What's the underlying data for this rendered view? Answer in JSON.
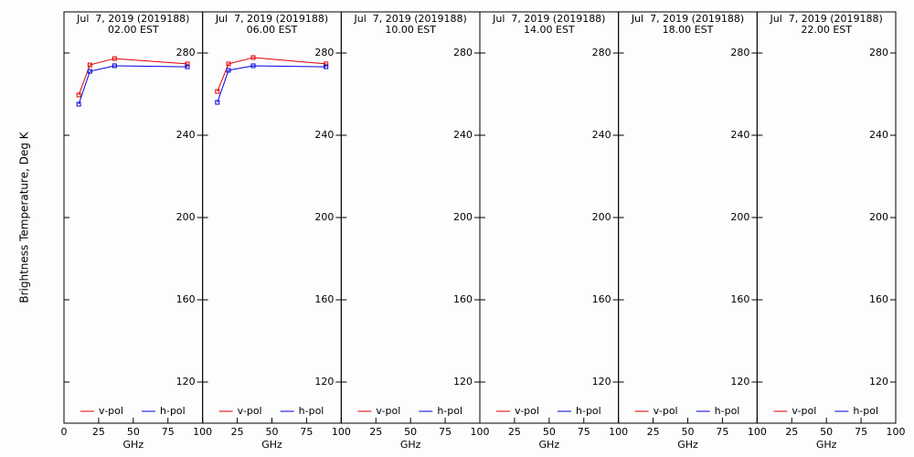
{
  "chart_data": [
    {
      "type": "line",
      "title": "Jul  7, 2019 (2019188)",
      "subtitle": "02.00 EST",
      "xlabel": "GHz",
      "ylabel": "Brightness Temperature, Deg K",
      "x": [
        10.65,
        18.7,
        36.5,
        89
      ],
      "series": [
        {
          "name": "v-pol",
          "color": "#e00000",
          "values": [
            259.6,
            274.2,
            277.3,
            274.7
          ]
        },
        {
          "name": "h-pol",
          "color": "#0000e0",
          "values": [
            255.1,
            271.1,
            273.8,
            273.3
          ]
        }
      ],
      "xlim": [
        0,
        100
      ],
      "ylim": [
        100,
        300
      ],
      "xticks": [
        0,
        25,
        50,
        75,
        100
      ],
      "yticks": [
        120,
        160,
        200,
        240,
        280
      ]
    },
    {
      "type": "line",
      "title": "Jul  7, 2019 (2019188)",
      "subtitle": "06.00 EST",
      "xlabel": "GHz",
      "x": [
        10.65,
        18.7,
        36.5,
        89
      ],
      "series": [
        {
          "name": "v-pol",
          "color": "#e00000",
          "values": [
            261.3,
            274.7,
            277.8,
            274.7
          ]
        },
        {
          "name": "h-pol",
          "color": "#0000e0",
          "values": [
            256,
            271.6,
            273.8,
            273.3
          ]
        }
      ],
      "xlim": [
        0,
        100
      ],
      "ylim": [
        100,
        300
      ],
      "xticks": [
        25,
        50,
        75,
        100
      ],
      "yticks": [
        120,
        160,
        200,
        240,
        280
      ]
    },
    {
      "type": "line",
      "title": "Jul  7, 2019 (2019188)",
      "subtitle": "10.00 EST",
      "xlabel": "GHz",
      "x": [
        10.65,
        18.7,
        36.5,
        89
      ],
      "series": [
        {
          "name": "v-pol",
          "color": "#e00000",
          "values": [
            null,
            null,
            null,
            null
          ]
        },
        {
          "name": "h-pol",
          "color": "#0000e0",
          "values": [
            null,
            null,
            null,
            null
          ]
        }
      ],
      "xlim": [
        0,
        100
      ],
      "ylim": [
        100,
        300
      ],
      "xticks": [
        25,
        50,
        75,
        100
      ],
      "yticks": [
        120,
        160,
        200,
        240,
        280
      ]
    },
    {
      "type": "line",
      "title": "Jul  7, 2019 (2019188)",
      "subtitle": "14.00 EST",
      "xlabel": "GHz",
      "x": [
        10.65,
        18.7,
        36.5,
        89
      ],
      "series": [
        {
          "name": "v-pol",
          "color": "#e00000",
          "values": [
            null,
            null,
            null,
            null
          ]
        },
        {
          "name": "h-pol",
          "color": "#0000e0",
          "values": [
            null,
            null,
            null,
            null
          ]
        }
      ],
      "xlim": [
        0,
        100
      ],
      "ylim": [
        100,
        300
      ],
      "xticks": [
        25,
        50,
        75,
        100
      ],
      "yticks": [
        120,
        160,
        200,
        240,
        280
      ]
    },
    {
      "type": "line",
      "title": "Jul  7, 2019 (2019188)",
      "subtitle": "18.00 EST",
      "xlabel": "GHz",
      "x": [
        10.65,
        18.7,
        36.5,
        89
      ],
      "series": [
        {
          "name": "v-pol",
          "color": "#e00000",
          "values": [
            null,
            null,
            null,
            null
          ]
        },
        {
          "name": "h-pol",
          "color": "#0000e0",
          "values": [
            null,
            null,
            null,
            null
          ]
        }
      ],
      "xlim": [
        0,
        100
      ],
      "ylim": [
        100,
        300
      ],
      "xticks": [
        25,
        50,
        75,
        100
      ],
      "yticks": [
        120,
        160,
        200,
        240,
        280
      ]
    },
    {
      "type": "line",
      "title": "Jul  7, 2019 (2019188)",
      "subtitle": "22.00 EST",
      "xlabel": "GHz",
      "x": [
        10.65,
        18.7,
        36.5,
        89
      ],
      "series": [
        {
          "name": "v-pol",
          "color": "#e00000",
          "values": [
            null,
            null,
            null,
            null
          ]
        },
        {
          "name": "h-pol",
          "color": "#0000e0",
          "values": [
            null,
            null,
            null,
            null
          ]
        }
      ],
      "xlim": [
        0,
        100
      ],
      "ylim": [
        100,
        300
      ],
      "xticks": [
        25,
        50,
        75,
        100
      ],
      "yticks": [
        120,
        160,
        200,
        240,
        280
      ]
    }
  ]
}
